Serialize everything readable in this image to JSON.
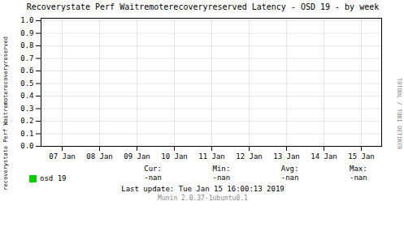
{
  "chart_data": {
    "type": "line",
    "title": "Recoverystate Perf Waitremoterecoveryreserved Latency - OSD 19 - by week",
    "y_label": "recoverystate Perf Waitremoterecoveryreserved",
    "categories": [
      "07 Jan",
      "08 Jan",
      "09 Jan",
      "10 Jan",
      "11 Jan",
      "12 Jan",
      "13 Jan",
      "14 Jan",
      "15 Jan"
    ],
    "series": [
      {
        "name": "osd 19",
        "color": "#00cc00",
        "values": [
          null,
          null,
          null,
          null,
          null,
          null,
          null,
          null,
          null
        ]
      }
    ],
    "ylim": [
      0,
      1.02
    ],
    "yticks": [
      {
        "value": 0,
        "label": "0.0"
      },
      0.1,
      0.2,
      0.3,
      0.4,
      0.5,
      0.6,
      0.7,
      0.8,
      0.9,
      {
        "value": 1,
        "label": "1.0"
      }
    ],
    "grid": true,
    "annotations": [
      "TOTOOL / TOBI OETIKER",
      [
        "Cur:",
        "-nan"
      ],
      [
        "Min:",
        "-nan"
      ],
      [
        "Avg:",
        "-nan"
      ],
      [
        "Max:",
        "-nan"
      ],
      "Last update: Tue Jan 15 16:00:13 2019",
      "Munin 2.0.37-1ubuntu0.1"
    ]
  }
}
